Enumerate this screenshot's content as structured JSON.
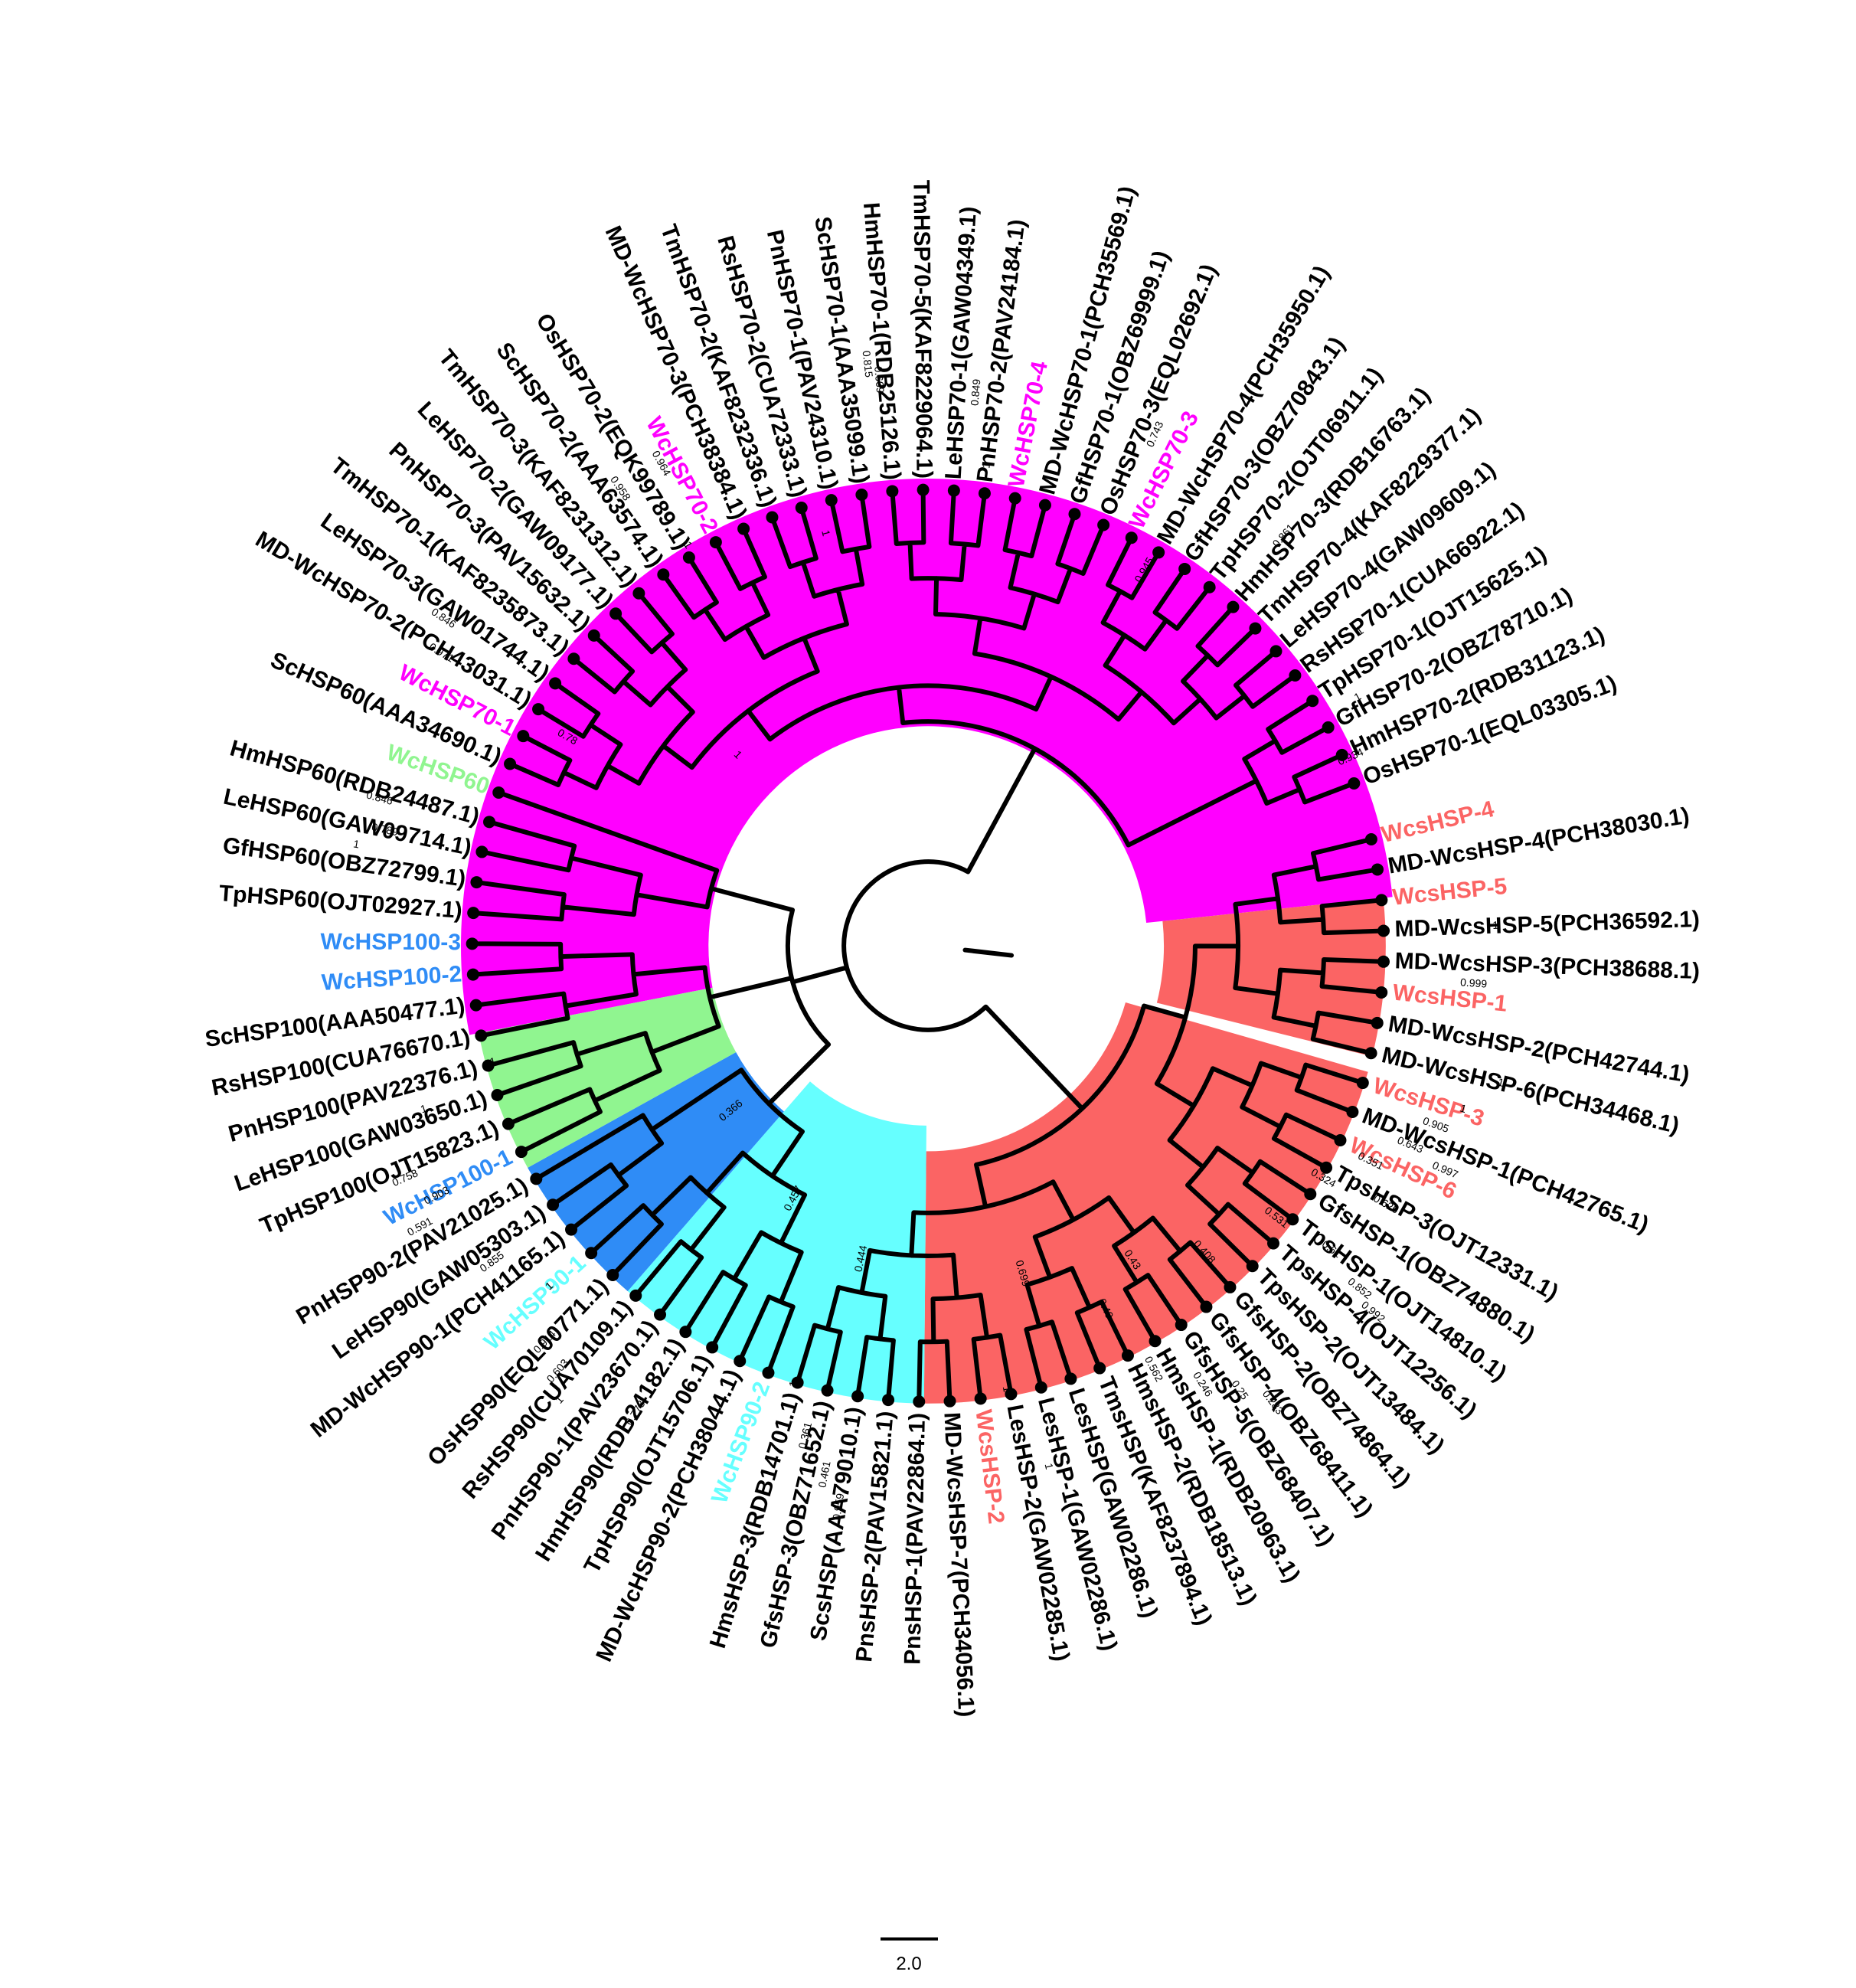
{
  "colors": {
    "HSP70": "#ff00ff",
    "HSP60": "#90f590",
    "HSP100": "#2f8cf6",
    "HSP90": "#66ffff",
    "sHSP": "#fb6464",
    "black": "#000000"
  },
  "clades": [
    {
      "name": "HSP70",
      "color": "#ff00ff",
      "a0": 169,
      "a1": 354,
      "r0": 470,
      "r1": 1000
    },
    {
      "name": "sHSP",
      "color": "#fb6464",
      "a0": -6,
      "a1": 14,
      "r0": 505,
      "r1": 980
    },
    {
      "name": "sHSP",
      "color": "#fb6464",
      "a0": 16,
      "a1": 90.5,
      "r0": 440,
      "r1": 980
    },
    {
      "name": "HSP90",
      "color": "#66ffff",
      "a0": 90.5,
      "a1": 131,
      "r0": 385,
      "r1": 980
    },
    {
      "name": "HSP100",
      "color": "#2f8cf6",
      "a0": 131,
      "a1": 151,
      "r0": 470,
      "r1": 980
    },
    {
      "name": "HSP60",
      "color": "#90f590",
      "a0": 151,
      "a1": 169,
      "r0": 470,
      "r1": 980
    }
  ],
  "leaves": [
    {
      "label": "WcsHSP-4",
      "group": "sHSP",
      "highlight": true
    },
    {
      "label": "MD-WcsHSP-4(PCH38030.1)",
      "group": "sHSP",
      "highlight": false
    },
    {
      "label": "WcsHSP-5",
      "group": "sHSP",
      "highlight": true
    },
    {
      "label": "MD-WcsHSP-5(PCH36592.1)",
      "group": "sHSP",
      "highlight": false
    },
    {
      "label": "MD-WcsHSP-3(PCH38688.1)",
      "group": "sHSP",
      "highlight": false
    },
    {
      "label": "WcsHSP-1",
      "group": "sHSP",
      "highlight": true
    },
    {
      "label": "MD-WcsHSP-2(PCH42744.1)",
      "group": "sHSP",
      "highlight": false
    },
    {
      "label": "MD-WcsHSP-6(PCH34468.1)",
      "group": "sHSP",
      "highlight": false
    },
    {
      "label": "WcsHSP-3",
      "group": "sHSP",
      "highlight": true
    },
    {
      "label": "MD-WcsHSP-1(PCH42765.1)",
      "group": "sHSP",
      "highlight": false
    },
    {
      "label": "WcsHSP-6",
      "group": "sHSP",
      "highlight": true
    },
    {
      "label": "TpsHSP-3(OJT12331.1)",
      "group": "sHSP",
      "highlight": false
    },
    {
      "label": "GfsHSP-1(OBZ74880.1)",
      "group": "sHSP",
      "highlight": false
    },
    {
      "label": "TpsHSP-1(OJT14810.1)",
      "group": "sHSP",
      "highlight": false
    },
    {
      "label": "TpsHSP-4(OJT12256.1)",
      "group": "sHSP",
      "highlight": false
    },
    {
      "label": "TpsHSP-2(OJT13484.1)",
      "group": "sHSP",
      "highlight": false
    },
    {
      "label": "GfsHSP-2(OBZ74864.1)",
      "group": "sHSP",
      "highlight": false
    },
    {
      "label": "GfsHSP-4(OBZ68411.1)",
      "group": "sHSP",
      "highlight": false
    },
    {
      "label": "GfsHSP-5(OBZ68407.1)",
      "group": "sHSP",
      "highlight": false
    },
    {
      "label": "HmsHSP-1(RDB20963.1)",
      "group": "sHSP",
      "highlight": false
    },
    {
      "label": "HmsHSP-2(RDB18513.1)",
      "group": "sHSP",
      "highlight": false
    },
    {
      "label": "TmsHSP(KAF8237894.1)",
      "group": "sHSP",
      "highlight": false
    },
    {
      "label": "LesHSP(GAW02286.1)",
      "group": "sHSP",
      "highlight": false
    },
    {
      "label": "LesHSP-1(GAW02286.1)",
      "group": "sHSP",
      "highlight": false
    },
    {
      "label": "LesHSP-2(GAW02285.1)",
      "group": "sHSP",
      "highlight": false
    },
    {
      "label": "WcsHSP-2",
      "group": "sHSP",
      "highlight": true
    },
    {
      "label": "MD-WcsHSP-7(PCH34056.1)",
      "group": "sHSP",
      "highlight": false
    },
    {
      "label": "PnsHSP-1(PAV22864.1)",
      "group": "sHSP",
      "highlight": false
    },
    {
      "label": "PnsHSP-2(PAV15821.1)",
      "group": "sHSP",
      "highlight": false
    },
    {
      "label": "ScsHSP(AAA79010.1)",
      "group": "sHSP",
      "highlight": false
    },
    {
      "label": "GfsHSP-3(OBZ71652.1)",
      "group": "sHSP",
      "highlight": false
    },
    {
      "label": "HmsHSP-3(RDB14701.1)",
      "group": "sHSP",
      "highlight": false
    },
    {
      "label": "WcHSP90-2",
      "group": "HSP90",
      "highlight": true
    },
    {
      "label": "MD-WcHSP90-2(PCH38044.1)",
      "group": "HSP90",
      "highlight": false
    },
    {
      "label": "TpHSP90(OJT15706.1)",
      "group": "HSP90",
      "highlight": false
    },
    {
      "label": "HmHSP90(RDB24182.1)",
      "group": "HSP90",
      "highlight": false
    },
    {
      "label": "PnHSP90-1(PAV23670.1)",
      "group": "HSP90",
      "highlight": false
    },
    {
      "label": "RsHSP90(CUA70109.1)",
      "group": "HSP90",
      "highlight": false
    },
    {
      "label": "OsHSP90(EQL00771.1)",
      "group": "HSP90",
      "highlight": false
    },
    {
      "label": "WcHSP90-1",
      "group": "HSP90",
      "highlight": true
    },
    {
      "label": "MD-WcHSP90-1(PCH41165.1)",
      "group": "HSP90",
      "highlight": false
    },
    {
      "label": "LeHSP90(GAW05303.1)",
      "group": "HSP90",
      "highlight": false
    },
    {
      "label": "PnHSP90-2(PAV21025.1)",
      "group": "HSP90",
      "highlight": false
    },
    {
      "label": "WcHSP100-1",
      "group": "HSP100",
      "highlight": true
    },
    {
      "label": "TpHSP100(OJT15823.1)",
      "group": "HSP100",
      "highlight": false
    },
    {
      "label": "LeHSP100(GAW03650.1)",
      "group": "HSP100",
      "highlight": false
    },
    {
      "label": "PnHSP100(PAV22376.1)",
      "group": "HSP100",
      "highlight": false
    },
    {
      "label": "RsHSP100(CUA76670.1)",
      "group": "HSP100",
      "highlight": false
    },
    {
      "label": "ScHSP100(AAA50477.1)",
      "group": "HSP100",
      "highlight": false
    },
    {
      "label": "WcHSP100-2",
      "group": "HSP100",
      "highlight": true
    },
    {
      "label": "WcHSP100-3",
      "group": "HSP100",
      "highlight": true
    },
    {
      "label": "TpHSP60(OJT02927.1)",
      "group": "HSP60",
      "highlight": false
    },
    {
      "label": "GfHSP60(OBZ72799.1)",
      "group": "HSP60",
      "highlight": false
    },
    {
      "label": "LeHSP60(GAW09714.1)",
      "group": "HSP60",
      "highlight": false
    },
    {
      "label": "HmHSP60(RDB24487.1)",
      "group": "HSP60",
      "highlight": false
    },
    {
      "label": "WcHSP60",
      "group": "HSP60",
      "highlight": true
    },
    {
      "label": "ScHSP60(AAA34690.1)",
      "group": "HSP70",
      "highlight": false
    },
    {
      "label": "WcHSP70-1",
      "group": "HSP70",
      "highlight": true
    },
    {
      "label": "MD-WcHSP70-2(PCH43031.1)",
      "group": "HSP70",
      "highlight": false
    },
    {
      "label": "LeHSP70-3(GAW01744.1)",
      "group": "HSP70",
      "highlight": false
    },
    {
      "label": "TmHSP70-1(KAF8235873.1)",
      "group": "HSP70",
      "highlight": false
    },
    {
      "label": "PnHSP70-3(PAV15632.1)",
      "group": "HSP70",
      "highlight": false
    },
    {
      "label": "LeHSP70-2(GAW09177.1)",
      "group": "HSP70",
      "highlight": false
    },
    {
      "label": "TmHSP70-3(KAF8231312.1)",
      "group": "HSP70",
      "highlight": false
    },
    {
      "label": "ScHSP70-2(AAA63574.1)",
      "group": "HSP70",
      "highlight": false
    },
    {
      "label": "OsHSP70-2(EQK99789.1)",
      "group": "HSP70",
      "highlight": false
    },
    {
      "label": "WcHSP70-2",
      "group": "HSP70",
      "highlight": true
    },
    {
      "label": "MD-WcHSP70-3(PCH38384.1)",
      "group": "HSP70",
      "highlight": false
    },
    {
      "label": "TmHSP70-2(KAF8232336.1)",
      "group": "HSP70",
      "highlight": false
    },
    {
      "label": "RsHSP70-2(CUA72333.1)",
      "group": "HSP70",
      "highlight": false
    },
    {
      "label": "PnHSP70-1(PAV24310.1)",
      "group": "HSP70",
      "highlight": false
    },
    {
      "label": "ScHSP70-1(AAA35099.1)",
      "group": "HSP70",
      "highlight": false
    },
    {
      "label": "HmHSP70-1(RDB25126.1)",
      "group": "HSP70",
      "highlight": false
    },
    {
      "label": "TmHSP70-5(KAF8229064.1)",
      "group": "HSP70",
      "highlight": false
    },
    {
      "label": "LeHSP70-1(GAW04349.1)",
      "group": "HSP70",
      "highlight": false
    },
    {
      "label": "PnHSP70-2(PAV24184.1)",
      "group": "HSP70",
      "highlight": false
    },
    {
      "label": "WcHSP70-4",
      "group": "HSP70",
      "highlight": true
    },
    {
      "label": "MD-WcHSP70-1(PCH35569.1)",
      "group": "HSP70",
      "highlight": false
    },
    {
      "label": "GfHSP70-1(OBZ69999.1)",
      "group": "HSP70",
      "highlight": false
    },
    {
      "label": "OsHSP70-3(EQL02692.1)",
      "group": "HSP70",
      "highlight": false
    },
    {
      "label": "WcHSP70-3",
      "group": "HSP70",
      "highlight": true
    },
    {
      "label": "MD-WcHSP70-4(PCH35950.1)",
      "group": "HSP70",
      "highlight": false
    },
    {
      "label": "GfHSP70-3(OBZ70843.1)",
      "group": "HSP70",
      "highlight": false
    },
    {
      "label": "TpHSP70-2(OJT06911.1)",
      "group": "HSP70",
      "highlight": false
    },
    {
      "label": "HmHSP70-3(RDB16763.1)",
      "group": "HSP70",
      "highlight": false
    },
    {
      "label": "TmHSP70-4(KAF8229377.1)",
      "group": "HSP70",
      "highlight": false
    },
    {
      "label": "LeHSP70-4(GAW09609.1)",
      "group": "HSP70",
      "highlight": false
    },
    {
      "label": "RsHSP70-1(CUA66922.1)",
      "group": "HSP70",
      "highlight": false
    },
    {
      "label": "TpHSP70-1(OJT15625.1)",
      "group": "HSP70",
      "highlight": false
    },
    {
      "label": "GfHSP70-2(OBZ78710.1)",
      "group": "HSP70",
      "highlight": false
    },
    {
      "label": "HmHSP70-2(RDB31123.1)",
      "group": "HSP70",
      "highlight": false
    },
    {
      "label": "OsHSP70-1(EQL03305.1)",
      "group": "HSP70",
      "highlight": false
    }
  ],
  "bootstrap": [
    {
      "label": "1",
      "a": -2,
      "r": 1840
    },
    {
      "label": "0.999",
      "a": 4,
      "r": 1790
    },
    {
      "label": "1",
      "a": 13.5,
      "r": 1890
    },
    {
      "label": "1",
      "a": 17,
      "r": 1820
    },
    {
      "label": "0.905",
      "a": 19.5,
      "r": 1770
    },
    {
      "label": "0.643",
      "a": 22.5,
      "r": 1730
    },
    {
      "label": "0.997",
      "a": 23.5,
      "r": 1830
    },
    {
      "label": "0.351",
      "a": 26,
      "r": 1660
    },
    {
      "label": "0.626",
      "a": 29.5,
      "r": 1740
    },
    {
      "label": "0.324",
      "a": 30.5,
      "r": 1580
    },
    {
      "label": "0.531",
      "a": 38,
      "r": 1540
    },
    {
      "label": "0.61",
      "a": 37,
      "r": 1690
    },
    {
      "label": "0.852",
      "a": 38.5,
      "r": 1800
    },
    {
      "label": "0.992",
      "a": 39.5,
      "r": 1860
    },
    {
      "label": "0.408",
      "a": 48,
      "r": 1470
    },
    {
      "label": "0.43",
      "a": 57,
      "r": 1380
    },
    {
      "label": "0.49",
      "a": 64,
      "r": 1450
    },
    {
      "label": "0.562",
      "a": 62,
      "r": 1630
    },
    {
      "label": "0.246",
      "a": 58,
      "r": 1720
    },
    {
      "label": "0.25",
      "a": 55,
      "r": 1780
    },
    {
      "label": "0.283",
      "a": 53,
      "r": 1850
    },
    {
      "label": "0.699",
      "a": 74,
      "r": 1300
    },
    {
      "label": "1",
      "a": 80,
      "r": 1560
    },
    {
      "label": "1",
      "a": 77,
      "r": 1760
    },
    {
      "label": "0.444",
      "a": 102,
      "r": 1250
    },
    {
      "label": "1",
      "a": 107,
      "r": 1580
    },
    {
      "label": "0.361",
      "a": 104,
      "r": 1690
    },
    {
      "label": "0.461",
      "a": 101,
      "r": 1770
    },
    {
      "label": "0.959",
      "a": 99,
      "r": 1840
    },
    {
      "label": "0.778",
      "a": 122,
      "r": 1800
    },
    {
      "label": "0.457",
      "a": 118,
      "r": 1170
    },
    {
      "label": "0.366",
      "a": 140,
      "r": 1100
    },
    {
      "label": "1",
      "a": 138,
      "r": 1700
    },
    {
      "label": "0.855",
      "a": 144,
      "r": 1770
    },
    {
      "label": "0.914",
      "a": 134,
      "r": 1800
    },
    {
      "label": "0.603",
      "a": 131,
      "r": 1830
    },
    {
      "label": "1",
      "a": 129,
      "r": 1880
    },
    {
      "label": "1",
      "a": 165,
      "r": 1560
    },
    {
      "label": "1",
      "a": 162,
      "r": 1750
    },
    {
      "label": "0.758",
      "a": 156,
      "r": 1850
    },
    {
      "label": "0.903",
      "a": 153,
      "r": 1800
    },
    {
      "label": "0.591",
      "a": 151,
      "r": 1870
    },
    {
      "label": "1",
      "a": 225,
      "r": 1130
    },
    {
      "label": "0.78",
      "a": 210,
      "r": 1480
    },
    {
      "label": "0.789",
      "a": 192,
      "r": 1810
    },
    {
      "label": "0.846",
      "a": 195,
      "r": 1840
    },
    {
      "label": "1",
      "a": 190,
      "r": 1870
    },
    {
      "label": "0.971",
      "a": 211,
      "r": 1840
    },
    {
      "label": "0.846",
      "a": 214,
      "r": 1880
    },
    {
      "label": "1",
      "a": 239,
      "r": 1600
    },
    {
      "label": "0.958",
      "a": 236,
      "r": 1800
    },
    {
      "label": "0.964",
      "a": 241,
      "r": 1800
    },
    {
      "label": "1",
      "a": 256,
      "r": 1500
    },
    {
      "label": "0.815",
      "a": 264,
      "r": 1880
    },
    {
      "label": "0.669",
      "a": 265,
      "r": 1840
    },
    {
      "label": "0.849",
      "a": 275,
      "r": 1810
    },
    {
      "label": "1",
      "a": 277,
      "r": 1640
    },
    {
      "label": "0.945",
      "a": 300,
      "r": 1520
    },
    {
      "label": "0.743",
      "a": 294,
      "r": 1820
    },
    {
      "label": "0.861",
      "a": 311,
      "r": 1780
    },
    {
      "label": "1",
      "a": 324,
      "r": 1760
    },
    {
      "label": "1",
      "a": 330,
      "r": 1670
    },
    {
      "label": "0.934",
      "a": 336,
      "r": 1590
    }
  ],
  "scale_bar": {
    "label": "2.0"
  }
}
